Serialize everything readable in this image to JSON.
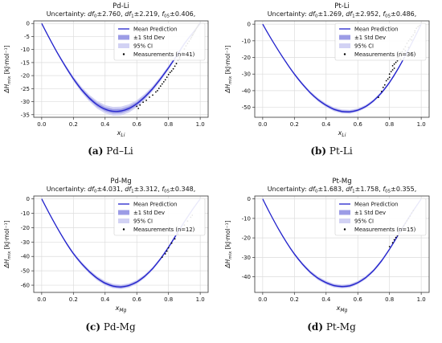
{
  "chart_data": [
    {
      "type": "line",
      "title": "Pd-Li",
      "subtitle": "Uncertainty: df0±2.760, df1±2.219, f05±0.406,",
      "subtitle_parts": [
        "Uncertainty: ",
        "df",
        "0",
        "±2.760, ",
        "df",
        "1",
        "±2.219, ",
        "f",
        "05",
        "±0.406,"
      ],
      "xlabel": "x",
      "xlabel_sub": "Li",
      "ylabel": "ΔH",
      "ylabel_sub": "mix",
      "ylabel_unit": " [kJ·mol⁻¹]",
      "xlim": [
        -0.05,
        1.05
      ],
      "ylim": [
        -36,
        1
      ],
      "xticks": [
        "0.0",
        "0.2",
        "0.4",
        "0.6",
        "0.8",
        "1.0"
      ],
      "yticks": [
        "0",
        "-5",
        "-10",
        "-15",
        "-20",
        "-25",
        "-30",
        "-35"
      ],
      "grid": true,
      "legend": {
        "placement": "top-right",
        "entries": [
          "Mean Prediction",
          "±1 Std Dev",
          "95% CI",
          "Measurements (n=41)"
        ]
      },
      "series": [
        {
          "name": "Mean Prediction",
          "x": [
            0,
            0.05,
            0.1,
            0.15,
            0.2,
            0.25,
            0.3,
            0.35,
            0.4,
            0.45,
            0.5,
            0.55,
            0.6,
            0.65,
            0.7,
            0.75,
            0.8,
            0.85,
            0.9,
            0.95,
            1.0
          ],
          "y": [
            0,
            -5.8,
            -11.4,
            -16.5,
            -21.2,
            -25.3,
            -28.6,
            -31.2,
            -32.9,
            -33.7,
            -33.6,
            -32.6,
            -30.8,
            -28.2,
            -25.0,
            -21.2,
            -17.0,
            -12.5,
            -7.8,
            -3.8,
            0
          ],
          "std": [
            0,
            0.15,
            0.25,
            0.35,
            0.45,
            0.55,
            0.65,
            0.75,
            0.8,
            0.85,
            0.85,
            0.8,
            0.7,
            0.6,
            0.5,
            0.45,
            0.4,
            0.35,
            0.3,
            0.2,
            0
          ]
        },
        {
          "name": "Measurements (n=41)",
          "x": [
            0.6,
            0.62,
            0.64,
            0.66,
            0.68,
            0.7,
            0.72,
            0.74,
            0.75,
            0.76,
            0.77,
            0.78,
            0.79,
            0.8,
            0.81,
            0.82,
            0.83,
            0.84,
            0.85,
            0.86,
            0.87,
            0.88,
            0.89,
            0.9,
            0.91,
            0.92,
            0.93,
            0.94,
            0.945,
            0.95,
            0.955,
            0.96,
            0.965,
            0.97,
            0.975,
            0.98,
            0.985,
            0.99,
            0.61,
            0.73,
            0.87
          ],
          "y": [
            -31.8,
            -31.3,
            -30.2,
            -29.5,
            -28.3,
            -27.5,
            -26.3,
            -24.9,
            -24.0,
            -23.2,
            -22.4,
            -21.6,
            -20.6,
            -19.6,
            -18.8,
            -18.2,
            -17.4,
            -16.4,
            -15.4,
            -14.0,
            -12.9,
            -11.9,
            -11.2,
            -9.8,
            -8.6,
            -7.7,
            -6.8,
            -5.9,
            -5.3,
            -4.6,
            -4.2,
            -3.6,
            -3.1,
            -2.6,
            -2.0,
            -1.5,
            -1.0,
            -0.5,
            -32.6,
            -25.8,
            -13.6
          ]
        }
      ]
    },
    {
      "type": "line",
      "title": "Pt-Li",
      "subtitle": "Uncertainty: df0±1.269, df1±2.952, f05±0.486,",
      "subtitle_parts": [
        "Uncertainty: ",
        "df",
        "0",
        "±1.269, ",
        "df",
        "1",
        "±2.952, ",
        "f",
        "05",
        "±0.486,"
      ],
      "xlabel": "x",
      "xlabel_sub": "Li",
      "ylabel": "ΔH",
      "ylabel_sub": "mix",
      "ylabel_unit": " [kJ·mol⁻¹]",
      "xlim": [
        -0.05,
        1.05
      ],
      "ylim": [
        -56,
        2
      ],
      "xticks": [
        "0.0",
        "0.2",
        "0.4",
        "0.6",
        "0.8",
        "1.0"
      ],
      "yticks": [
        "0",
        "-10",
        "-20",
        "-30",
        "-40",
        "-50"
      ],
      "grid": true,
      "legend": {
        "placement": "top-right",
        "entries": [
          "Mean Prediction",
          "±1 Std Dev",
          "95% CI",
          "Measurements (n=36)"
        ]
      },
      "series": [
        {
          "name": "Mean Prediction",
          "x": [
            0,
            0.05,
            0.1,
            0.15,
            0.2,
            0.25,
            0.3,
            0.35,
            0.4,
            0.45,
            0.5,
            0.55,
            0.6,
            0.65,
            0.7,
            0.75,
            0.8,
            0.85,
            0.9,
            0.95,
            1.0
          ],
          "y": [
            0,
            -8.2,
            -16.0,
            -23.3,
            -30.0,
            -36.0,
            -41.2,
            -45.5,
            -48.8,
            -51.2,
            -52.5,
            -52.7,
            -51.7,
            -49.5,
            -46.0,
            -41.2,
            -35.0,
            -27.5,
            -18.9,
            -9.6,
            0
          ],
          "std": [
            0,
            0.15,
            0.25,
            0.35,
            0.4,
            0.45,
            0.5,
            0.55,
            0.6,
            0.6,
            0.6,
            0.6,
            0.55,
            0.5,
            0.45,
            0.45,
            0.4,
            0.35,
            0.3,
            0.2,
            0
          ]
        },
        {
          "name": "Measurements (n=36)",
          "x": [
            0.73,
            0.75,
            0.77,
            0.78,
            0.79,
            0.8,
            0.8,
            0.81,
            0.82,
            0.82,
            0.83,
            0.84,
            0.85,
            0.85,
            0.86,
            0.87,
            0.88,
            0.88,
            0.89,
            0.9,
            0.9,
            0.91,
            0.92,
            0.93,
            0.94,
            0.95,
            0.96,
            0.96,
            0.97,
            0.98,
            0.99,
            0.76,
            0.83,
            0.87,
            0.92,
            0.94
          ],
          "y": [
            -44.0,
            -40.5,
            -36.5,
            -34.0,
            -33.0,
            -30.0,
            -32.0,
            -28.5,
            -27.5,
            -25.0,
            -24.0,
            -23.0,
            -22.0,
            -20.0,
            -19.5,
            -17.0,
            -16.5,
            -18.5,
            -15.0,
            -13.5,
            -16.0,
            -11.5,
            -10.0,
            -9.0,
            -7.5,
            -6.5,
            -5.0,
            -4.0,
            -2.5,
            -1.5,
            -0.8,
            -38.0,
            -26.5,
            -21.0,
            -14.0,
            -9.5
          ]
        }
      ]
    },
    {
      "type": "line",
      "title": "Pd-Mg",
      "subtitle": "Uncertainty: df0±4.031, df1±3.312, f05±0.348,",
      "subtitle_parts": [
        "Uncertainty: ",
        "df",
        "0",
        "±4.031, ",
        "df",
        "1",
        "±3.312, ",
        "f",
        "05",
        "±0.348,"
      ],
      "xlabel": "x",
      "xlabel_sub": "Mg",
      "ylabel": "ΔH",
      "ylabel_sub": "mix",
      "ylabel_unit": " [kJ·mol⁻¹]",
      "xlim": [
        -0.05,
        1.05
      ],
      "ylim": [
        -65,
        2
      ],
      "xticks": [
        "0.0",
        "0.2",
        "0.4",
        "0.6",
        "0.8",
        "1.0"
      ],
      "yticks": [
        "0",
        "-10",
        "-20",
        "-30",
        "-40",
        "-50",
        "-60"
      ],
      "grid": true,
      "legend": {
        "placement": "top-right",
        "entries": [
          "Mean Prediction",
          "±1 Std Dev",
          "95% CI",
          "Measurements (n=12)"
        ]
      },
      "series": [
        {
          "name": "Mean Prediction",
          "x": [
            0,
            0.05,
            0.1,
            0.15,
            0.2,
            0.25,
            0.3,
            0.35,
            0.4,
            0.45,
            0.5,
            0.55,
            0.6,
            0.65,
            0.7,
            0.75,
            0.8,
            0.85,
            0.9,
            0.95,
            1.0
          ],
          "y": [
            0,
            -10.5,
            -20.5,
            -29.8,
            -38.0,
            -44.8,
            -50.5,
            -55.2,
            -58.6,
            -60.6,
            -61.2,
            -60.2,
            -57.8,
            -53.8,
            -48.4,
            -41.6,
            -33.6,
            -24.8,
            -16.0,
            -7.6,
            0
          ],
          "std": [
            0,
            0.2,
            0.35,
            0.45,
            0.55,
            0.65,
            0.7,
            0.75,
            0.8,
            0.8,
            0.8,
            0.75,
            0.7,
            0.65,
            0.6,
            0.55,
            0.5,
            0.45,
            0.35,
            0.25,
            0
          ]
        },
        {
          "name": "Measurements (n=12)",
          "x": [
            0.76,
            0.78,
            0.79,
            0.8,
            0.82,
            0.84,
            0.86,
            0.88,
            0.9,
            0.92,
            0.94,
            0.95
          ],
          "y": [
            -40.5,
            -38.2,
            -36.3,
            -34.0,
            -30.8,
            -27.8,
            -24.6,
            -21.4,
            -18.2,
            -15.4,
            -12.8,
            -11.4
          ]
        }
      ]
    },
    {
      "type": "line",
      "title": "Pt-Mg",
      "subtitle": "Uncertainty: df0±1.683, df1±1.758, f05±0.355,",
      "subtitle_parts": [
        "Uncertainty: ",
        "df",
        "0",
        "±1.683, ",
        "df",
        "1",
        "±1.758, ",
        "f",
        "05",
        "±0.355,"
      ],
      "xlabel": "x",
      "xlabel_sub": "Mg",
      "ylabel": "ΔH",
      "ylabel_sub": "mix",
      "ylabel_unit": " [kJ·mol⁻¹]",
      "xlim": [
        -0.05,
        1.05
      ],
      "ylim": [
        -48,
        1.5
      ],
      "xticks": [
        "0.0",
        "0.2",
        "0.4",
        "0.6",
        "0.8",
        "1.0"
      ],
      "yticks": [
        "0",
        "-10",
        "-20",
        "-30",
        "-40"
      ],
      "grid": true,
      "legend": {
        "placement": "top-right",
        "entries": [
          "Mean Prediction",
          "±1 Std Dev",
          "95% CI",
          "Measurements (n=15)"
        ]
      },
      "series": [
        {
          "name": "Mean Prediction",
          "x": [
            0,
            0.05,
            0.1,
            0.15,
            0.2,
            0.25,
            0.3,
            0.35,
            0.4,
            0.45,
            0.5,
            0.55,
            0.6,
            0.65,
            0.7,
            0.75,
            0.8,
            0.85,
            0.9,
            0.95,
            1.0
          ],
          "y": [
            0,
            -8.0,
            -15.5,
            -22.3,
            -28.3,
            -33.4,
            -37.6,
            -40.8,
            -43.0,
            -44.5,
            -45.0,
            -44.6,
            -43.0,
            -40.4,
            -36.7,
            -31.8,
            -25.8,
            -19.2,
            -12.4,
            -6.0,
            0
          ],
          "std": [
            0,
            0.15,
            0.25,
            0.3,
            0.35,
            0.4,
            0.45,
            0.5,
            0.5,
            0.5,
            0.5,
            0.5,
            0.45,
            0.45,
            0.4,
            0.4,
            0.35,
            0.3,
            0.25,
            0.2,
            0
          ]
        },
        {
          "name": "Measurements (n=15)",
          "x": [
            0.8,
            0.82,
            0.83,
            0.84,
            0.85,
            0.86,
            0.87,
            0.88,
            0.89,
            0.9,
            0.91,
            0.92,
            0.93,
            0.94,
            0.95
          ],
          "y": [
            -24.5,
            -22.5,
            -21.0,
            -19.8,
            -18.8,
            -17.5,
            -16.3,
            -15.0,
            -13.8,
            -12.5,
            -11.2,
            -10.0,
            -8.8,
            -7.3,
            -6.0
          ]
        }
      ]
    }
  ],
  "captions": [
    {
      "letter": "(a)",
      "text": "Pd–Li"
    },
    {
      "letter": "(b)",
      "text": "Pt-Li"
    },
    {
      "letter": "(c)",
      "text": "Pd-Mg"
    },
    {
      "letter": "(d)",
      "text": "Pt-Mg"
    }
  ],
  "colors": {
    "line": "#2222cc",
    "std_band": "#9c9ce6",
    "ci_band": "#d2d2f4",
    "point": "#000000",
    "grid": "#dcdcdc"
  }
}
